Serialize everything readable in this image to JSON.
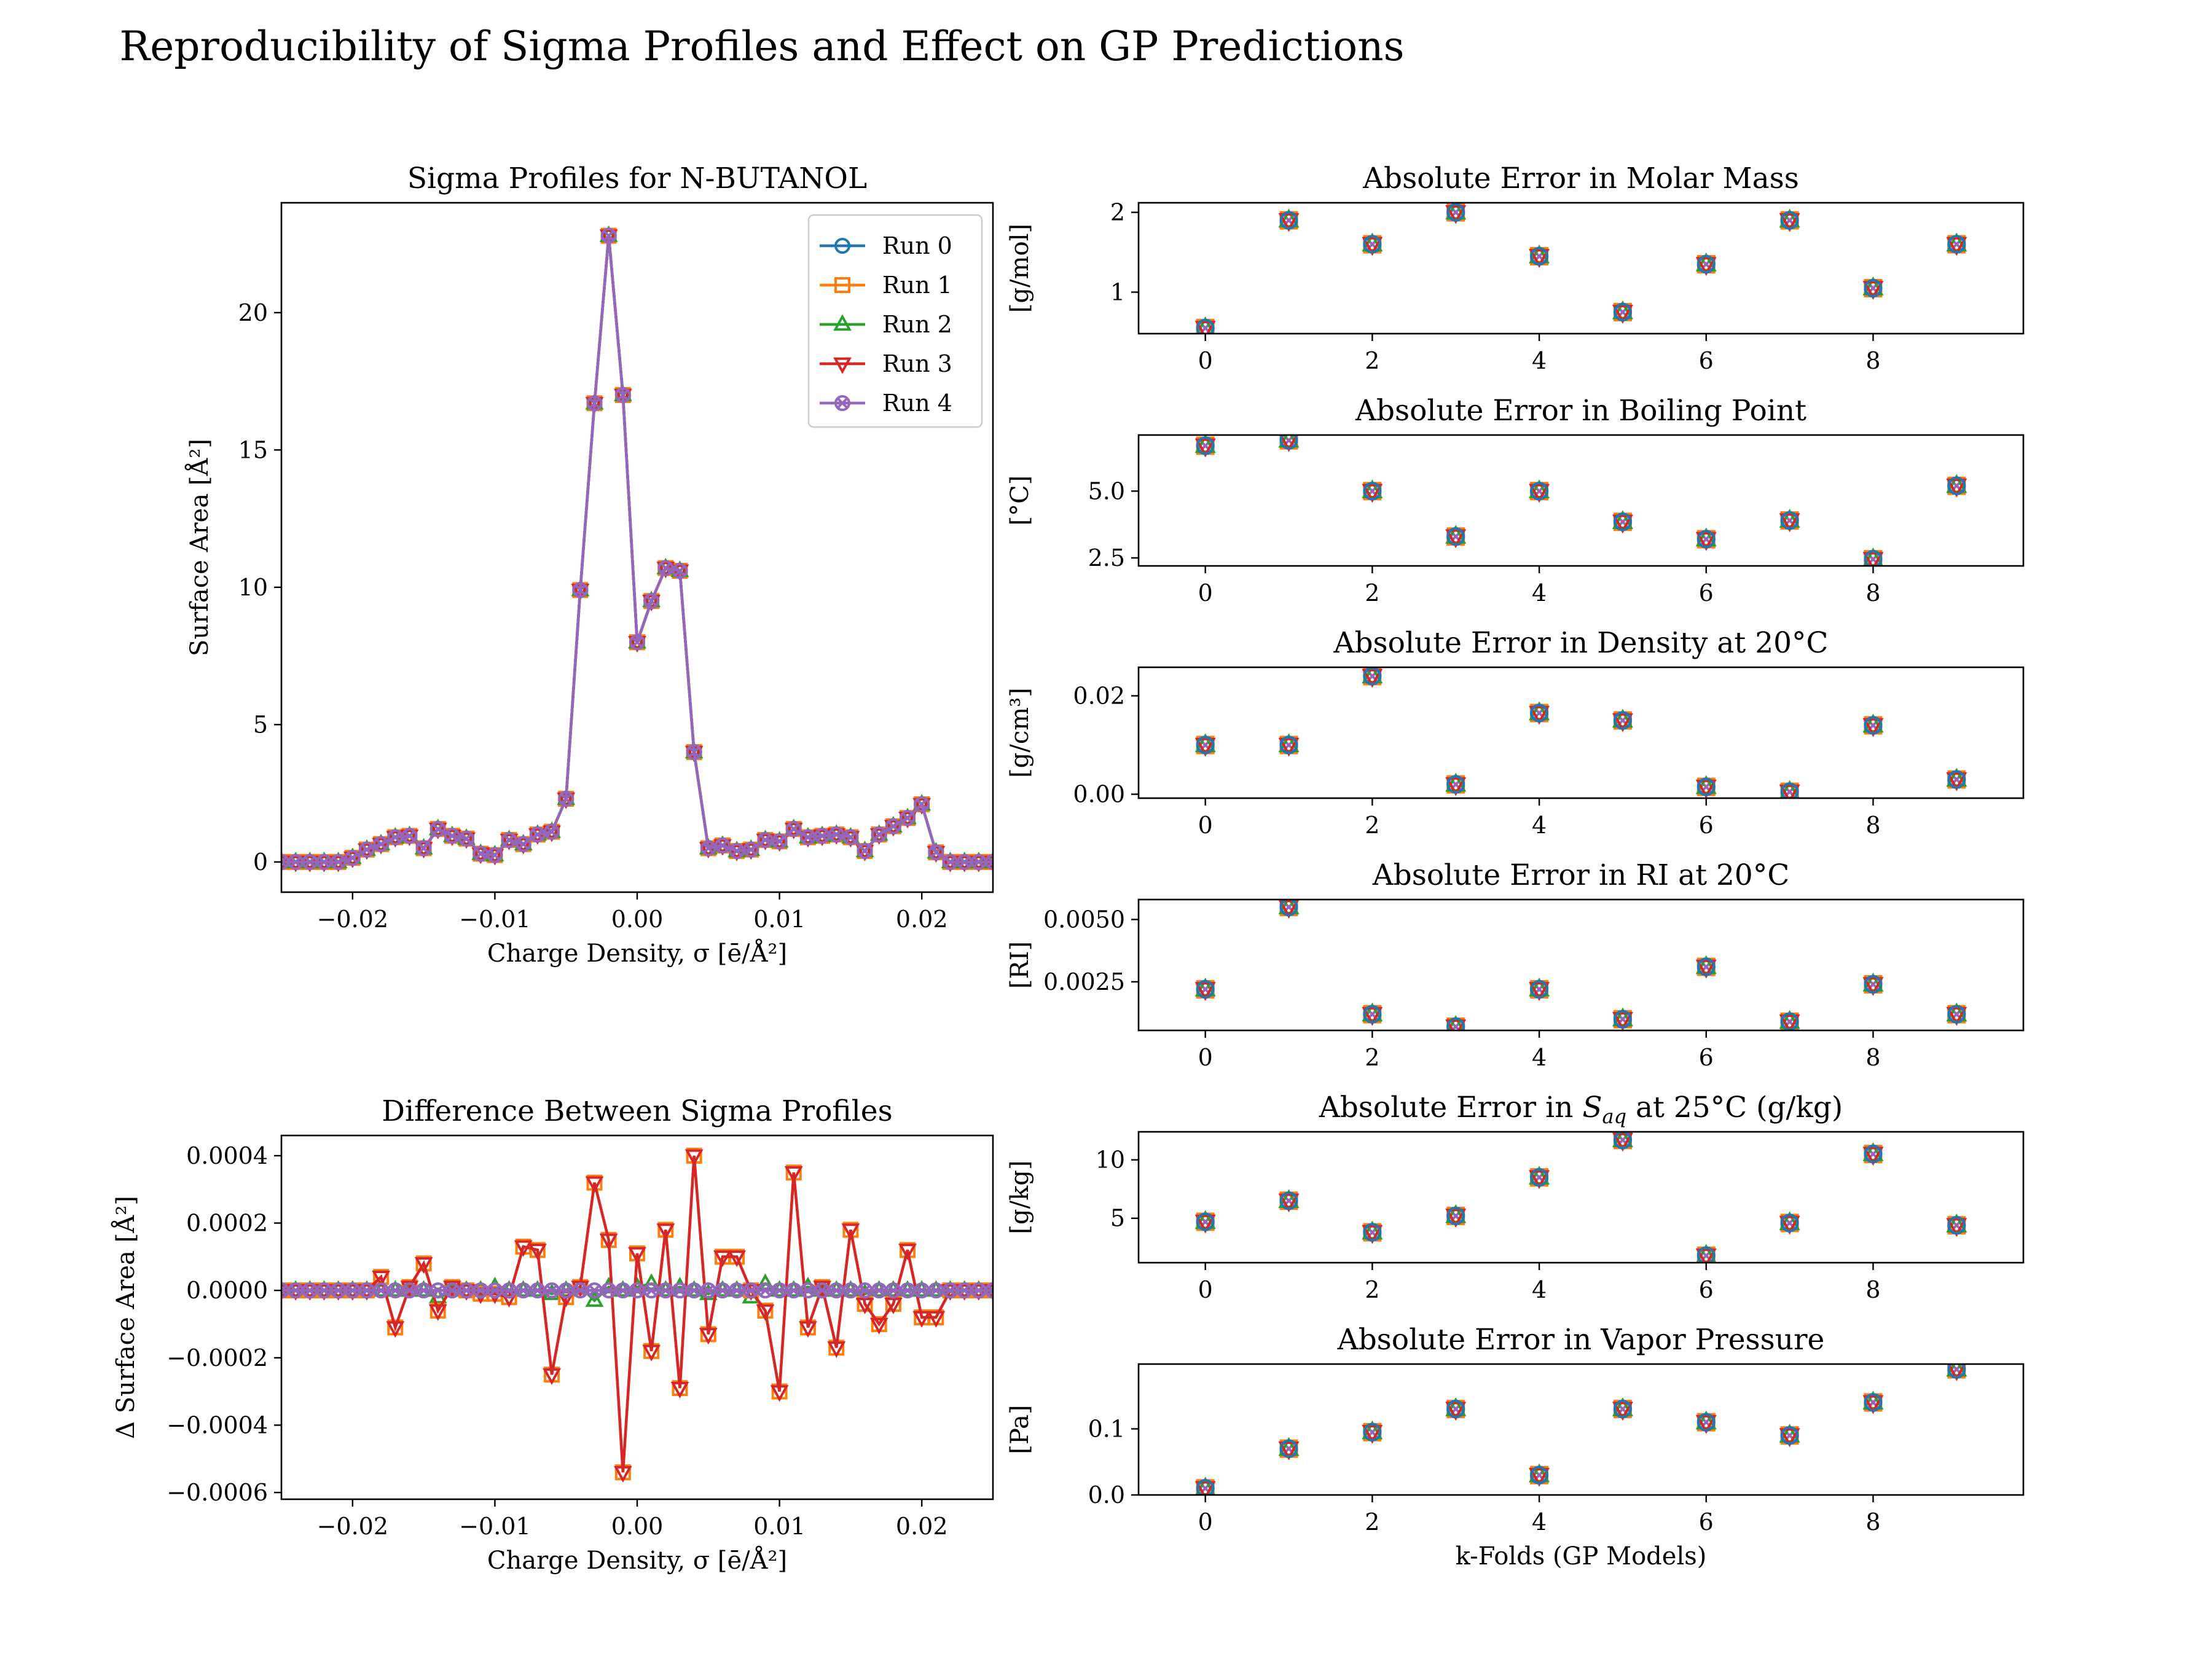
{
  "figure": {
    "title": "Reproducibility of Sigma Profiles and Effect on GP Predictions"
  },
  "colors": {
    "run0": "#1f77b4",
    "run1": "#ff7f0e",
    "run2": "#2ca02c",
    "run3": "#d62728",
    "run4": "#9467bd",
    "axis": "#000000",
    "background": "#ffffff"
  },
  "legend": {
    "placement": "upper-right",
    "entries": [
      "Run 0",
      "Run 1",
      "Run 2",
      "Run 3",
      "Run 4"
    ]
  },
  "chart_data": [
    {
      "id": "sigma",
      "type": "line",
      "title": "Sigma Profiles for N-BUTANOL",
      "xlabel": "Charge Density, σ [ē/Å²]",
      "ylabel": "Surface Area [Å²]",
      "xlim": [
        -0.025,
        0.025
      ],
      "ylim": [
        -1.1,
        24.0
      ],
      "xticks": [
        -0.02,
        -0.01,
        0.0,
        0.01,
        0.02
      ],
      "xtick_labels": [
        "−0.02",
        "−0.01",
        "0.00",
        "0.01",
        "0.02"
      ],
      "yticks": [
        0,
        5,
        10,
        15,
        20
      ],
      "ytick_labels": [
        "0",
        "5",
        "10",
        "15",
        "20"
      ],
      "x": [
        -0.025,
        -0.024,
        -0.023,
        -0.022,
        -0.021,
        -0.02,
        -0.019,
        -0.018,
        -0.017,
        -0.016,
        -0.015,
        -0.014,
        -0.013,
        -0.012,
        -0.011,
        -0.01,
        -0.009,
        -0.008,
        -0.007,
        -0.006,
        -0.005,
        -0.004,
        -0.003,
        -0.002,
        -0.001,
        0.0,
        0.001,
        0.002,
        0.003,
        0.004,
        0.005,
        0.006,
        0.007,
        0.008,
        0.009,
        0.01,
        0.011,
        0.012,
        0.013,
        0.014,
        0.015,
        0.016,
        0.017,
        0.018,
        0.019,
        0.02,
        0.021,
        0.022,
        0.023,
        0.024,
        0.025
      ],
      "values": [
        0,
        0,
        0,
        0,
        0,
        0.15,
        0.45,
        0.65,
        0.9,
        0.95,
        0.5,
        1.2,
        0.95,
        0.85,
        0.3,
        0.25,
        0.8,
        0.65,
        1.0,
        1.1,
        2.3,
        9.9,
        16.7,
        22.8,
        17.0,
        8.0,
        9.5,
        10.7,
        10.6,
        4.0,
        0.5,
        0.6,
        0.4,
        0.45,
        0.8,
        0.75,
        1.2,
        0.9,
        0.95,
        1.0,
        0.9,
        0.4,
        1.0,
        1.3,
        1.6,
        2.1,
        0.35,
        0,
        0,
        0,
        0
      ],
      "series": [
        {
          "name": "Run 0",
          "marker": "circle"
        },
        {
          "name": "Run 1",
          "marker": "square"
        },
        {
          "name": "Run 2",
          "marker": "triangle-up"
        },
        {
          "name": "Run 3",
          "marker": "triangle-down"
        },
        {
          "name": "Run 4",
          "marker": "x-circle"
        }
      ]
    },
    {
      "id": "diff",
      "type": "line",
      "title": "Difference Between Sigma Profiles",
      "xlabel": "Charge Density, σ [ē/Å²]",
      "ylabel": "Δ Surface Area [Å²]",
      "xlim": [
        -0.025,
        0.025
      ],
      "ylim": [
        -0.00062,
        0.00046
      ],
      "xticks": [
        -0.02,
        -0.01,
        0.0,
        0.01,
        0.02
      ],
      "xtick_labels": [
        "−0.02",
        "−0.01",
        "0.00",
        "0.01",
        "0.02"
      ],
      "yticks": [
        0.0004,
        0.0002,
        0.0,
        -0.0002,
        -0.0004,
        -0.0006
      ],
      "ytick_labels": [
        "0.0004",
        "0.0002",
        "0.0000",
        "−0.0002",
        "−0.0004",
        "−0.0006"
      ],
      "x": [
        -0.025,
        -0.024,
        -0.023,
        -0.022,
        -0.021,
        -0.02,
        -0.019,
        -0.018,
        -0.017,
        -0.016,
        -0.015,
        -0.014,
        -0.013,
        -0.012,
        -0.011,
        -0.01,
        -0.009,
        -0.008,
        -0.007,
        -0.006,
        -0.005,
        -0.004,
        -0.003,
        -0.002,
        -0.001,
        0.0,
        0.001,
        0.002,
        0.003,
        0.004,
        0.005,
        0.006,
        0.007,
        0.008,
        0.009,
        0.01,
        0.011,
        0.012,
        0.013,
        0.014,
        0.015,
        0.016,
        0.017,
        0.018,
        0.019,
        0.02,
        0.021,
        0.022,
        0.023,
        0.024,
        0.025
      ],
      "series": [
        {
          "name": "Run 0",
          "values": [
            0,
            0,
            0,
            0,
            0,
            0,
            0,
            0,
            0,
            0,
            0,
            0,
            0,
            0,
            0,
            0,
            0,
            0,
            0,
            0,
            0,
            0,
            0,
            0,
            0,
            0,
            0,
            0,
            0,
            0,
            0,
            0,
            0,
            0,
            0,
            0,
            0,
            0,
            0,
            0,
            0,
            0,
            0,
            0,
            0,
            0,
            0,
            0,
            0,
            0,
            0
          ]
        },
        {
          "name": "Run 1",
          "values": [
            0,
            0,
            0,
            0,
            0,
            0,
            0,
            4e-05,
            -0.00011,
            1e-05,
            8e-05,
            -6e-05,
            1e-05,
            0,
            -1e-05,
            -1e-05,
            -2e-05,
            0.00013,
            0.00012,
            -0.00025,
            -2e-05,
            1e-05,
            0.00032,
            0.00015,
            -0.00054,
            0.00011,
            -0.00018,
            0.00018,
            -0.00029,
            0.0004,
            -0.00013,
            0.0001,
            0.0001,
            0,
            -6e-05,
            -0.0003,
            0.00035,
            -0.00011,
            1e-05,
            -0.00017,
            0.00018,
            -4e-05,
            -0.0001,
            -4e-05,
            0.00012,
            -8e-05,
            -8e-05,
            0,
            0,
            0,
            0
          ]
        },
        {
          "name": "Run 2",
          "values": [
            0,
            0,
            0,
            0,
            0,
            0,
            0,
            0,
            0,
            0,
            0,
            -2e-05,
            0,
            0,
            0,
            1e-05,
            0,
            0,
            0,
            -1e-05,
            0,
            1e-05,
            -3e-05,
            1e-05,
            0,
            1e-05,
            2e-05,
            0,
            1e-05,
            0,
            -1e-05,
            0,
            0,
            -2e-05,
            2e-05,
            0,
            0,
            1e-05,
            0,
            0,
            0,
            -1e-05,
            0,
            0,
            0,
            0,
            0,
            0,
            0,
            0,
            0
          ]
        },
        {
          "name": "Run 3",
          "values": [
            0,
            0,
            0,
            0,
            0,
            0,
            0,
            4e-05,
            -0.00011,
            1e-05,
            8e-05,
            -6e-05,
            1e-05,
            0,
            -1e-05,
            -1e-05,
            -2e-05,
            0.00013,
            0.00012,
            -0.00025,
            -2e-05,
            1e-05,
            0.00032,
            0.00015,
            -0.00054,
            0.00011,
            -0.00018,
            0.00018,
            -0.00029,
            0.0004,
            -0.00013,
            0.0001,
            0.0001,
            0,
            -6e-05,
            -0.0003,
            0.00035,
            -0.00011,
            1e-05,
            -0.00017,
            0.00018,
            -4e-05,
            -0.0001,
            -4e-05,
            0.00012,
            -8e-05,
            -8e-05,
            0,
            0,
            0,
            0
          ]
        },
        {
          "name": "Run 4",
          "values": [
            0,
            0,
            0,
            0,
            0,
            0,
            0,
            0,
            0,
            0,
            0,
            0,
            0,
            0,
            0,
            0,
            0,
            0,
            0,
            0,
            0,
            0,
            0,
            0,
            0,
            0,
            0,
            0,
            0,
            0,
            0,
            0,
            0,
            0,
            0,
            0,
            0,
            0,
            0,
            0,
            0,
            0,
            0,
            0,
            0,
            0,
            0,
            0,
            0,
            0,
            0
          ]
        }
      ]
    },
    {
      "id": "mm",
      "type": "scatter",
      "title": "Absolute Error in Molar Mass",
      "ylabel": "[g/mol]",
      "xlim": [
        -0.8,
        9.8
      ],
      "ylim": [
        0.48,
        2.12
      ],
      "xticks": [
        0,
        2,
        4,
        6,
        8
      ],
      "xtick_labels": [
        "0",
        "2",
        "4",
        "6",
        "8"
      ],
      "yticks": [
        1,
        2
      ],
      "ytick_labels": [
        "1",
        "2"
      ],
      "x": [
        0,
        1,
        2,
        3,
        4,
        5,
        6,
        7,
        8,
        9
      ],
      "values": [
        0.55,
        1.9,
        1.6,
        2.0,
        1.45,
        0.75,
        1.35,
        1.9,
        1.05,
        1.6
      ]
    },
    {
      "id": "bp",
      "type": "scatter",
      "title": "Absolute Error in Boiling Point",
      "ylabel": "[°C]",
      "xlim": [
        -0.8,
        9.8
      ],
      "ylim": [
        2.2,
        7.1
      ],
      "xticks": [
        0,
        2,
        4,
        6,
        8
      ],
      "xtick_labels": [
        "0",
        "2",
        "4",
        "6",
        "8"
      ],
      "yticks": [
        2.5,
        5.0
      ],
      "ytick_labels": [
        "2.5",
        "5.0"
      ],
      "x": [
        0,
        1,
        2,
        3,
        4,
        5,
        6,
        7,
        8,
        9
      ],
      "values": [
        6.7,
        6.9,
        5.0,
        3.3,
        5.0,
        3.85,
        3.2,
        3.9,
        2.45,
        5.2
      ]
    },
    {
      "id": "dens",
      "type": "scatter",
      "title": "Absolute Error in Density at 20°C",
      "ylabel": "[g/cm³]",
      "xlim": [
        -0.8,
        9.8
      ],
      "ylim": [
        -0.0008,
        0.0258
      ],
      "xticks": [
        0,
        2,
        4,
        6,
        8
      ],
      "xtick_labels": [
        "0",
        "2",
        "4",
        "6",
        "8"
      ],
      "yticks": [
        0.0,
        0.02
      ],
      "ytick_labels": [
        "0.00",
        "0.02"
      ],
      "x": [
        0,
        1,
        2,
        3,
        4,
        5,
        6,
        7,
        8,
        9
      ],
      "values": [
        0.01,
        0.01,
        0.024,
        0.002,
        0.0165,
        0.015,
        0.0015,
        0.0005,
        0.014,
        0.003
      ]
    },
    {
      "id": "ri",
      "type": "scatter",
      "title": "Absolute Error in RI at 20°C",
      "ylabel": "[RI]",
      "xlim": [
        -0.8,
        9.8
      ],
      "ylim": [
        0.00055,
        0.0058
      ],
      "xticks": [
        0,
        2,
        4,
        6,
        8
      ],
      "xtick_labels": [
        "0",
        "2",
        "4",
        "6",
        "8"
      ],
      "yticks": [
        0.0025,
        0.005
      ],
      "ytick_labels": [
        "0.0025",
        "0.0050"
      ],
      "x": [
        0,
        1,
        2,
        3,
        4,
        5,
        6,
        7,
        8,
        9
      ],
      "values": [
        0.0022,
        0.0055,
        0.0012,
        0.0007,
        0.0022,
        0.001,
        0.0031,
        0.0009,
        0.0024,
        0.0012
      ]
    },
    {
      "id": "saq",
      "type": "scatter",
      "title": "Absolute Error in S_aq at 25°C (g/kg)",
      "title_parts": {
        "before": "Absolute Error in ",
        "var": "S",
        "sub": "aq",
        "after": " at 25°C (g/kg)"
      },
      "ylabel": "[g/kg]",
      "xlim": [
        -0.8,
        9.8
      ],
      "ylim": [
        1.2,
        12.4
      ],
      "xticks": [
        0,
        2,
        4,
        6,
        8
      ],
      "xtick_labels": [
        "0",
        "2",
        "4",
        "6",
        "8"
      ],
      "yticks": [
        5,
        10
      ],
      "ytick_labels": [
        "5",
        "10"
      ],
      "x": [
        0,
        1,
        2,
        3,
        4,
        5,
        6,
        7,
        8,
        9
      ],
      "values": [
        4.7,
        6.5,
        3.8,
        5.2,
        8.5,
        11.7,
        1.8,
        4.6,
        10.5,
        4.4
      ]
    },
    {
      "id": "vp",
      "type": "scatter",
      "title": "Absolute Error in Vapor Pressure",
      "ylabel": "[Pa]",
      "xlabel": "k-Folds (GP Models)",
      "xlim": [
        -0.8,
        9.8
      ],
      "ylim": [
        0.0,
        0.198
      ],
      "xticks": [
        0,
        2,
        4,
        6,
        8
      ],
      "xtick_labels": [
        "0",
        "2",
        "4",
        "6",
        "8"
      ],
      "yticks": [
        0.0,
        0.1
      ],
      "ytick_labels": [
        "0.0",
        "0.1"
      ],
      "x": [
        0,
        1,
        2,
        3,
        4,
        5,
        6,
        7,
        8,
        9
      ],
      "values": [
        0.01,
        0.07,
        0.095,
        0.13,
        0.03,
        0.13,
        0.11,
        0.09,
        0.14,
        0.19
      ]
    }
  ]
}
